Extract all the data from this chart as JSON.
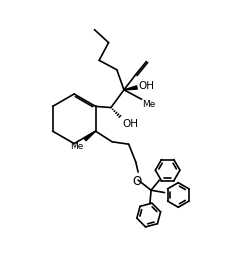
{
  "bg_color": "#ffffff",
  "line_color": "#000000",
  "lw": 1.2,
  "fs": 7.5,
  "xlim": [
    0,
    10
  ],
  "ylim": [
    0,
    11.5
  ]
}
